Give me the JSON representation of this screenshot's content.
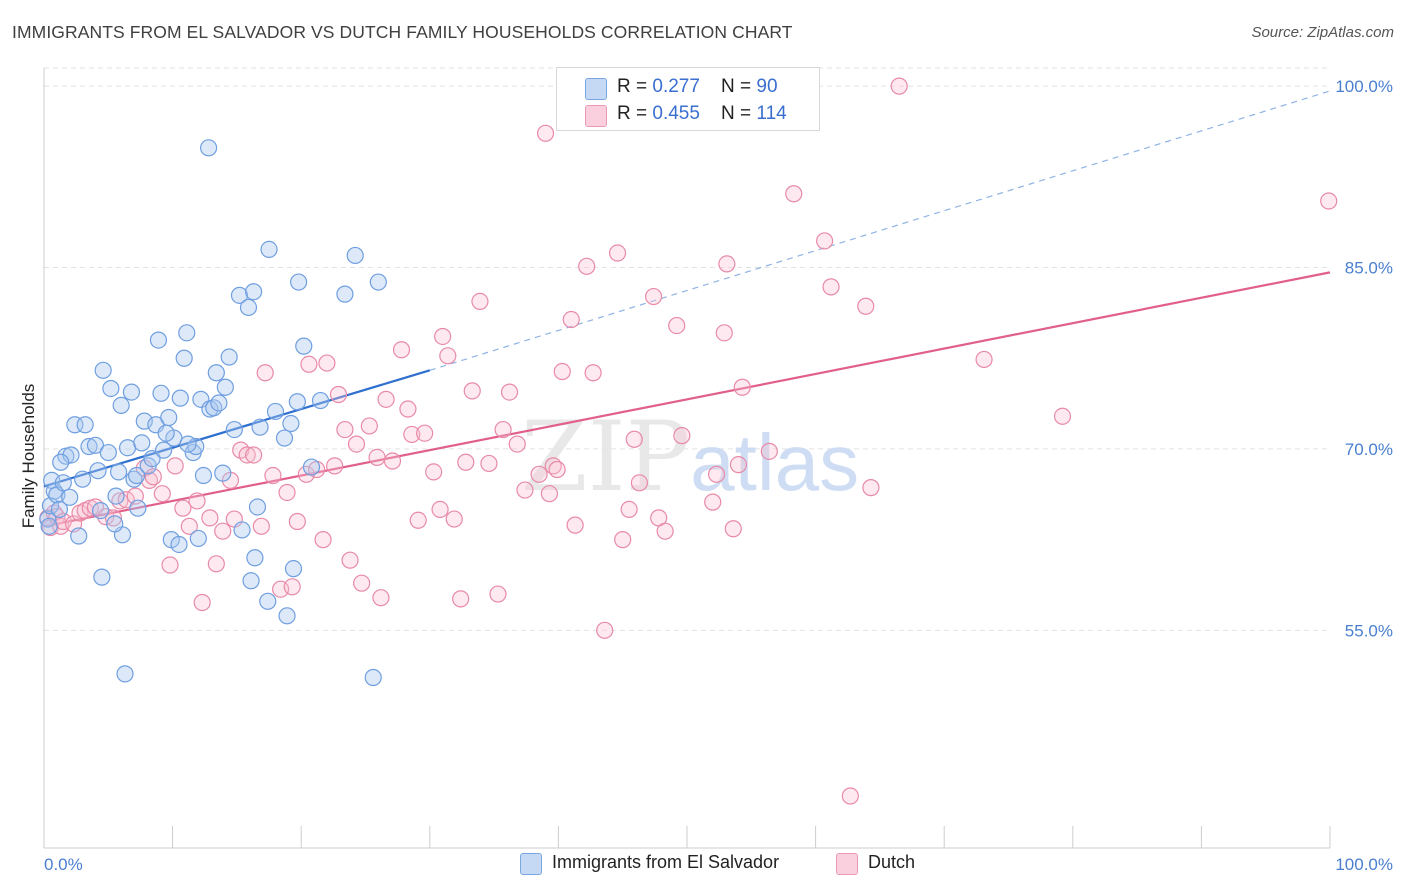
{
  "title": "IMMIGRANTS FROM EL SALVADOR VS DUTCH FAMILY HOUSEHOLDS CORRELATION CHART",
  "source": "Source: ZipAtlas.com",
  "watermark": "ZIPatlas",
  "colors": {
    "blue_fill": "#aac8f0",
    "blue_stroke": "#6f9fe0",
    "blue_line": "#2e6fcf",
    "pink_fill": "#f8c0d2",
    "pink_stroke": "#e88aa8",
    "pink_line": "#e0608a",
    "tick_text": "#4a7fd0",
    "grid": "#e2e2e2"
  },
  "legend": {
    "rows": [
      {
        "r_label": "R = ",
        "r_value": "0.277",
        "n_label": "N = ",
        "n_value": "90"
      },
      {
        "r_label": "R = ",
        "r_value": "0.455",
        "n_label": "N = ",
        "n_value": "114"
      }
    ]
  },
  "bottom_legend": [
    "Immigrants from El Salvador",
    "Dutch"
  ],
  "chart_data": {
    "type": "scatter",
    "title": "IMMIGRANTS FROM EL SALVADOR VS DUTCH FAMILY HOUSEHOLDS CORRELATION CHART",
    "xlabel": "",
    "ylabel": "Family Households",
    "xlim": [
      0,
      100
    ],
    "ylim": [
      37,
      101.5
    ],
    "x_tick_labels": [
      "0.0%",
      "100.0%"
    ],
    "y_ticks": [
      55,
      70,
      85,
      100
    ],
    "y_tick_labels": [
      "55.0%",
      "70.0%",
      "85.0%",
      "100.0%"
    ],
    "grid": true,
    "legend_position": "top-center",
    "series": [
      {
        "name": "Immigrants from El Salvador",
        "color": "blue",
        "R": 0.277,
        "N": 90,
        "trend": {
          "x0": 0,
          "y0": 66.9,
          "x1": 30,
          "y1": 76.5,
          "dashed_to_x": 100,
          "dashed_to_y": 99.6
        },
        "points": [
          [
            0.3,
            64.2
          ],
          [
            0.4,
            63.6
          ],
          [
            0.5,
            65.3
          ],
          [
            0.6,
            67.4
          ],
          [
            0.8,
            66.5
          ],
          [
            1.0,
            66.2
          ],
          [
            1.2,
            65.0
          ],
          [
            1.5,
            67.2
          ],
          [
            1.7,
            69.4
          ],
          [
            2.1,
            69.5
          ],
          [
            2.4,
            72.0
          ],
          [
            2.7,
            62.8
          ],
          [
            3.2,
            72.0
          ],
          [
            3.5,
            70.2
          ],
          [
            4.0,
            70.3
          ],
          [
            4.2,
            68.2
          ],
          [
            4.4,
            64.9
          ],
          [
            4.5,
            59.4
          ],
          [
            4.6,
            76.5
          ],
          [
            5.0,
            69.7
          ],
          [
            5.2,
            75.0
          ],
          [
            5.6,
            66.1
          ],
          [
            5.8,
            68.1
          ],
          [
            6.0,
            73.6
          ],
          [
            6.1,
            62.9
          ],
          [
            6.3,
            51.4
          ],
          [
            6.5,
            70.1
          ],
          [
            6.8,
            74.7
          ],
          [
            7.0,
            67.5
          ],
          [
            7.2,
            67.8
          ],
          [
            7.6,
            70.5
          ],
          [
            7.8,
            72.3
          ],
          [
            8.1,
            68.6
          ],
          [
            8.4,
            69.2
          ],
          [
            8.7,
            72.0
          ],
          [
            8.9,
            79.0
          ],
          [
            9.1,
            74.6
          ],
          [
            9.3,
            69.9
          ],
          [
            9.7,
            72.6
          ],
          [
            9.9,
            62.5
          ],
          [
            10.1,
            70.9
          ],
          [
            10.5,
            62.1
          ],
          [
            10.6,
            74.2
          ],
          [
            10.9,
            77.5
          ],
          [
            11.1,
            79.6
          ],
          [
            11.6,
            69.7
          ],
          [
            11.8,
            70.2
          ],
          [
            12.0,
            62.6
          ],
          [
            12.2,
            74.1
          ],
          [
            12.4,
            67.8
          ],
          [
            12.8,
            94.9
          ],
          [
            12.9,
            73.3
          ],
          [
            13.2,
            73.4
          ],
          [
            13.4,
            76.3
          ],
          [
            13.9,
            68.0
          ],
          [
            14.1,
            75.1
          ],
          [
            14.4,
            77.6
          ],
          [
            14.8,
            71.6
          ],
          [
            15.2,
            82.7
          ],
          [
            15.4,
            63.3
          ],
          [
            15.9,
            81.7
          ],
          [
            16.1,
            59.1
          ],
          [
            16.3,
            83.0
          ],
          [
            16.4,
            61.0
          ],
          [
            16.8,
            71.8
          ],
          [
            17.4,
            57.4
          ],
          [
            17.5,
            86.5
          ],
          [
            18.0,
            73.1
          ],
          [
            18.9,
            56.2
          ],
          [
            19.2,
            72.1
          ],
          [
            19.4,
            60.1
          ],
          [
            19.7,
            73.9
          ],
          [
            19.8,
            83.8
          ],
          [
            20.2,
            78.5
          ],
          [
            20.8,
            68.5
          ],
          [
            23.4,
            82.8
          ],
          [
            24.2,
            86.0
          ],
          [
            25.6,
            51.1
          ],
          [
            26.0,
            83.8
          ],
          [
            1.3,
            68.9
          ],
          [
            3.0,
            67.5
          ],
          [
            5.5,
            63.8
          ],
          [
            7.3,
            65.1
          ],
          [
            9.5,
            71.3
          ],
          [
            11.2,
            70.4
          ],
          [
            13.6,
            73.8
          ],
          [
            16.6,
            65.2
          ],
          [
            18.7,
            70.9
          ],
          [
            21.5,
            74.0
          ],
          [
            2.0,
            66.0
          ]
        ]
      },
      {
        "name": "Dutch",
        "color": "pink",
        "R": 0.455,
        "N": 114,
        "trend": {
          "x0": 0,
          "y0": 63.6,
          "x1": 100,
          "y1": 84.6
        },
        "points": [
          [
            0.3,
            64.3
          ],
          [
            0.5,
            63.5
          ],
          [
            0.8,
            64.7
          ],
          [
            1.0,
            64.4
          ],
          [
            1.3,
            63.6
          ],
          [
            1.5,
            64.0
          ],
          [
            2.3,
            63.8
          ],
          [
            2.8,
            64.7
          ],
          [
            3.2,
            64.9
          ],
          [
            3.6,
            65.1
          ],
          [
            4.0,
            65.2
          ],
          [
            4.8,
            64.4
          ],
          [
            5.4,
            64.3
          ],
          [
            5.9,
            65.7
          ],
          [
            6.4,
            65.8
          ],
          [
            7.1,
            66.1
          ],
          [
            7.8,
            68.4
          ],
          [
            8.2,
            67.4
          ],
          [
            8.5,
            67.7
          ],
          [
            9.2,
            66.3
          ],
          [
            9.8,
            60.4
          ],
          [
            10.2,
            68.6
          ],
          [
            10.8,
            65.1
          ],
          [
            11.3,
            63.6
          ],
          [
            11.9,
            65.7
          ],
          [
            12.3,
            57.3
          ],
          [
            12.9,
            64.3
          ],
          [
            13.4,
            60.5
          ],
          [
            13.9,
            63.2
          ],
          [
            14.5,
            67.4
          ],
          [
            14.8,
            64.2
          ],
          [
            15.3,
            69.9
          ],
          [
            15.8,
            69.5
          ],
          [
            16.3,
            69.5
          ],
          [
            16.9,
            63.6
          ],
          [
            17.2,
            76.3
          ],
          [
            17.8,
            67.8
          ],
          [
            18.4,
            58.4
          ],
          [
            18.9,
            66.4
          ],
          [
            19.3,
            58.6
          ],
          [
            19.7,
            64.0
          ],
          [
            20.4,
            67.9
          ],
          [
            20.6,
            77.0
          ],
          [
            21.2,
            68.3
          ],
          [
            21.7,
            62.5
          ],
          [
            22.0,
            77.1
          ],
          [
            22.6,
            68.6
          ],
          [
            22.9,
            74.5
          ],
          [
            23.4,
            71.6
          ],
          [
            23.8,
            60.8
          ],
          [
            24.3,
            70.4
          ],
          [
            24.7,
            58.9
          ],
          [
            25.3,
            71.9
          ],
          [
            25.9,
            69.3
          ],
          [
            26.2,
            57.7
          ],
          [
            26.6,
            74.1
          ],
          [
            27.1,
            69.0
          ],
          [
            27.8,
            78.2
          ],
          [
            28.3,
            73.3
          ],
          [
            28.6,
            71.2
          ],
          [
            29.1,
            64.1
          ],
          [
            29.6,
            71.3
          ],
          [
            30.3,
            68.1
          ],
          [
            30.8,
            65.0
          ],
          [
            31.0,
            79.3
          ],
          [
            31.4,
            77.7
          ],
          [
            31.9,
            64.2
          ],
          [
            32.4,
            57.6
          ],
          [
            32.8,
            68.9
          ],
          [
            33.3,
            74.8
          ],
          [
            33.9,
            82.2
          ],
          [
            34.6,
            68.8
          ],
          [
            35.3,
            58.0
          ],
          [
            35.7,
            71.6
          ],
          [
            36.2,
            74.7
          ],
          [
            36.8,
            70.4
          ],
          [
            37.4,
            66.6
          ],
          [
            38.5,
            67.9
          ],
          [
            39.0,
            96.1
          ],
          [
            39.3,
            66.3
          ],
          [
            39.6,
            68.6
          ],
          [
            39.9,
            68.3
          ],
          [
            40.3,
            76.4
          ],
          [
            41.0,
            80.7
          ],
          [
            41.3,
            63.7
          ],
          [
            42.2,
            85.1
          ],
          [
            42.7,
            76.3
          ],
          [
            43.6,
            55.0
          ],
          [
            44.6,
            86.2
          ],
          [
            45.0,
            62.5
          ],
          [
            45.5,
            65.0
          ],
          [
            45.9,
            70.8
          ],
          [
            46.3,
            67.2
          ],
          [
            47.4,
            82.6
          ],
          [
            47.8,
            64.3
          ],
          [
            48.3,
            63.2
          ],
          [
            49.2,
            80.2
          ],
          [
            49.6,
            71.1
          ],
          [
            52.0,
            65.6
          ],
          [
            52.3,
            67.9
          ],
          [
            52.9,
            79.6
          ],
          [
            53.1,
            85.3
          ],
          [
            53.6,
            63.4
          ],
          [
            54.0,
            68.7
          ],
          [
            54.3,
            75.1
          ],
          [
            56.4,
            69.8
          ],
          [
            58.3,
            91.1
          ],
          [
            60.7,
            87.2
          ],
          [
            61.2,
            83.4
          ],
          [
            62.7,
            41.3
          ],
          [
            63.9,
            81.8
          ],
          [
            64.3,
            66.8
          ],
          [
            66.5,
            100.0
          ],
          [
            73.1,
            77.4
          ],
          [
            79.2,
            72.7
          ],
          [
            99.9,
            90.5
          ]
        ]
      }
    ]
  }
}
